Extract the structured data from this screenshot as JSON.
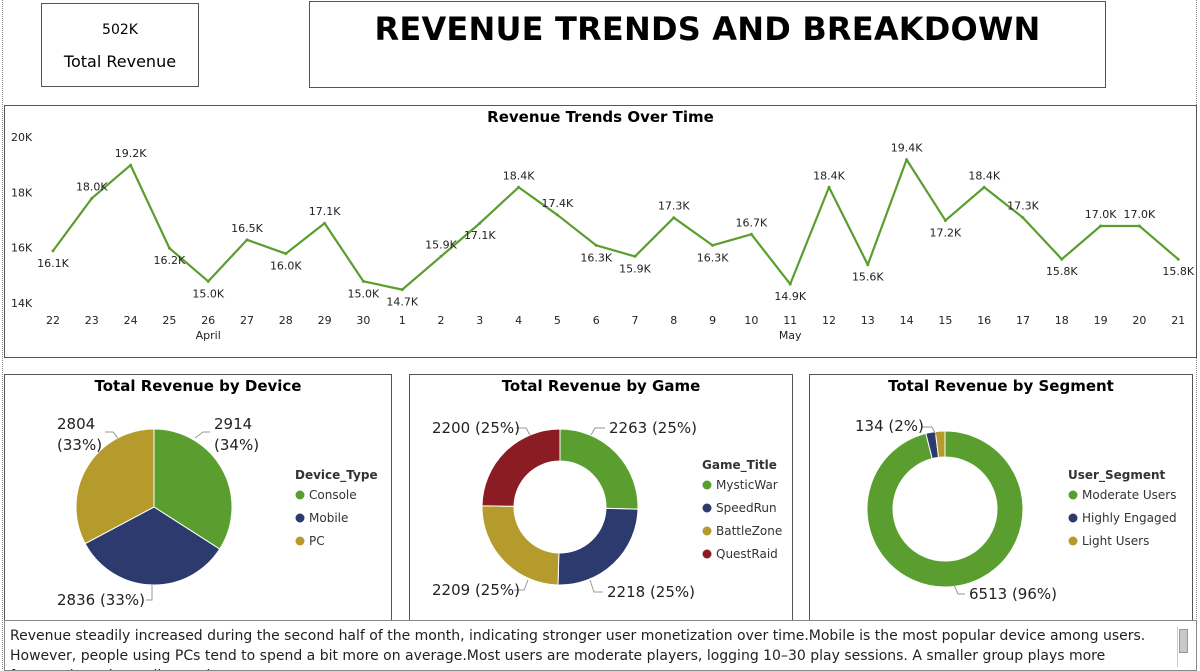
{
  "kpi": {
    "value": "502K",
    "label": "Total Revenue"
  },
  "page_title": "REVENUE TRENDS AND BREAKDOWN",
  "chart_data": [
    {
      "type": "line",
      "title": "Revenue Trends Over Time",
      "xlabel": "",
      "ylabel": "",
      "ylim": [
        14000,
        20000
      ],
      "yticks": [
        "20K",
        "18K",
        "16K",
        "14K"
      ],
      "ytick_values": [
        20000,
        18000,
        16000,
        14000
      ],
      "x": [
        "22",
        "23",
        "24",
        "25",
        "26",
        "27",
        "28",
        "29",
        "30",
        "1",
        "2",
        "3",
        "4",
        "5",
        "6",
        "7",
        "8",
        "9",
        "10",
        "11",
        "12",
        "13",
        "14",
        "15",
        "16",
        "17",
        "18",
        "19",
        "20",
        "21"
      ],
      "month_labels": [
        {
          "index": 4,
          "label": "April"
        },
        {
          "index": 19,
          "label": "May"
        }
      ],
      "series": [
        {
          "color": "#5a9e2f",
          "values": [
            16100,
            18000,
            19200,
            16200,
            15000,
            16500,
            16000,
            17100,
            15000,
            14700,
            15900,
            17100,
            18400,
            17400,
            16300,
            15900,
            17300,
            16300,
            16700,
            14900,
            18400,
            15600,
            19400,
            17200,
            18400,
            17300,
            15800,
            17000,
            17000,
            15800
          ],
          "labels": [
            "16.1K",
            "18.0K",
            "19.2K",
            "16.2K",
            "15.0K",
            "16.5K",
            "16.0K",
            "17.1K",
            "15.0K",
            "14.7K",
            "15.9K",
            "17.1K",
            "18.4K",
            "17.4K",
            "16.3K",
            "15.9K",
            "17.3K",
            "16.3K",
            "16.7K",
            "14.9K",
            "18.4K",
            "15.6K",
            "19.4K",
            "17.2K",
            "18.4K",
            "17.3K",
            "15.8K",
            "17.0K",
            "17.0K",
            "15.8K"
          ]
        }
      ]
    },
    {
      "type": "pie",
      "title": "Total Revenue by Device",
      "legend_title": "Device_Type",
      "legend": "right",
      "slices": [
        {
          "name": "Console",
          "value": 2914,
          "pct": "34%",
          "color": "#5a9e2f"
        },
        {
          "name": "Mobile",
          "value": 2836,
          "pct": "33%",
          "color": "#2c3a6e"
        },
        {
          "name": "PC",
          "value": 2804,
          "pct": "33%",
          "color": "#b59a2c"
        }
      ]
    },
    {
      "type": "pie",
      "title": "Total Revenue by Game",
      "donut": true,
      "legend_title": "Game_Title",
      "legend": "right",
      "slices": [
        {
          "name": "MysticWar",
          "value": 2263,
          "pct": "25%",
          "color": "#5a9e2f"
        },
        {
          "name": "SpeedRun",
          "value": 2218,
          "pct": "25%",
          "color": "#2c3a6e"
        },
        {
          "name": "BattleZone",
          "value": 2209,
          "pct": "25%",
          "color": "#b59a2c"
        },
        {
          "name": "QuestRaid",
          "value": 2200,
          "pct": "25%",
          "color": "#8b1c23"
        }
      ]
    },
    {
      "type": "pie",
      "title": "Total Revenue by Segment",
      "donut": true,
      "legend_title": "User_Segment",
      "legend": "right",
      "slices": [
        {
          "name": "Moderate Users",
          "value": 6513,
          "pct": "96%",
          "color": "#5a9e2f"
        },
        {
          "name": "Highly Engaged",
          "value": 134,
          "pct": "2%",
          "color": "#2c3a6e"
        },
        {
          "name": "Light Users",
          "value": 134,
          "pct": "",
          "color": "#b59a2c"
        }
      ]
    }
  ],
  "summary_text": "Revenue steadily increased during the second half of the month, indicating stronger user monetization over time.Mobile is the most popular device among users. However, people using PCs tend to spend a bit more on average.Most users are moderate players, logging 10–30 play sessions. A smaller group plays more frequently and contributes the"
}
